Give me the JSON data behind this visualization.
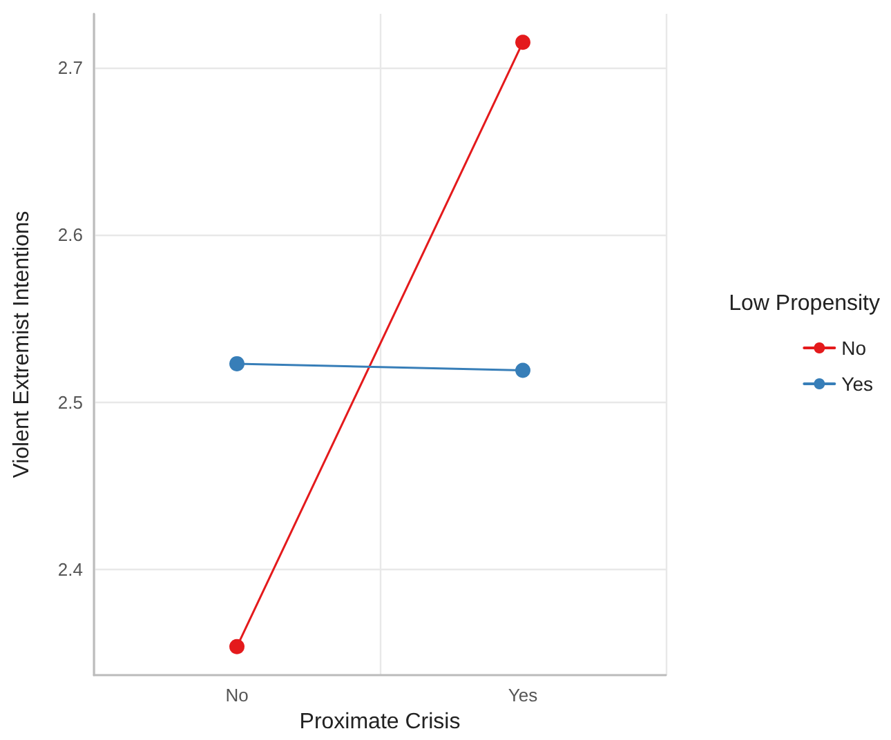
{
  "chart_data": {
    "type": "line",
    "xlabel": "Proximate Crisis",
    "ylabel": "Violent Extremist Intentions",
    "legend_title": "Low Propensity",
    "categories": [
      "No",
      "Yes"
    ],
    "series": [
      {
        "name": "No",
        "color": "#e41a1c",
        "values": [
          2.354,
          2.715
        ]
      },
      {
        "name": "Yes",
        "color": "#377eb8",
        "values": [
          2.523,
          2.519
        ]
      }
    ],
    "ylim": [
      2.337,
      2.732
    ],
    "yticks": [
      2.4,
      2.5,
      2.6,
      2.7
    ],
    "grid": true,
    "legend": "right",
    "marker": "circle",
    "line_style": "solid"
  }
}
